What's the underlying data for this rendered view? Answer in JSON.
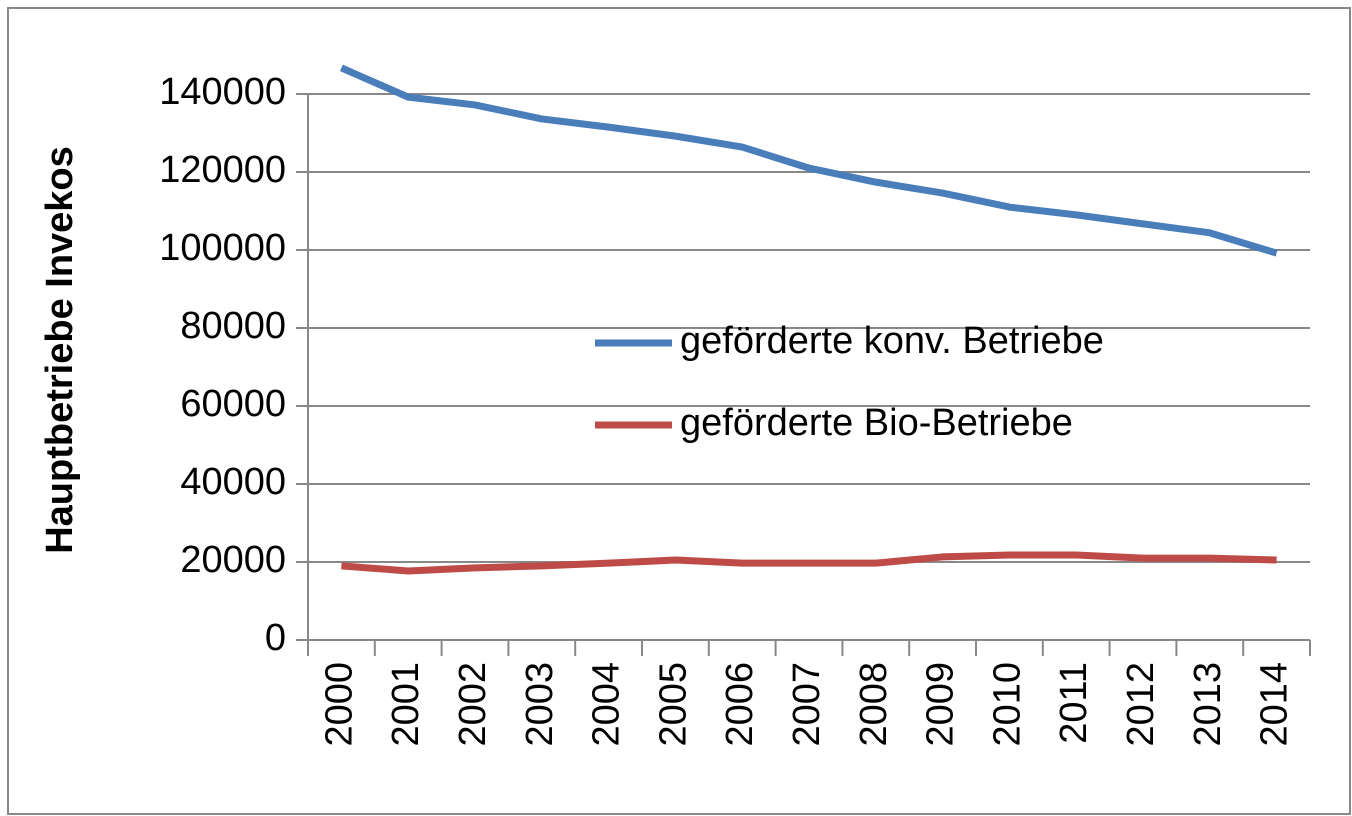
{
  "chart_data": {
    "type": "line",
    "y_label": "Hauptbetriebe Invekos",
    "categories": [
      "2000",
      "2001",
      "2002",
      "2003",
      "2004",
      "2005",
      "2006",
      "2007",
      "2008",
      "2009",
      "2010",
      "2011",
      "2012",
      "2013",
      "2014"
    ],
    "series": [
      {
        "name": "geförderte konv. Betriebe",
        "color": "#4a7ebb",
        "values": [
          146700,
          139200,
          137200,
          133600,
          131500,
          129200,
          126400,
          121000,
          117400,
          114600,
          111000,
          109000,
          106700,
          104400,
          99200
        ]
      },
      {
        "name": "geförderte Bio-Betriebe",
        "color": "#be4b48",
        "values": [
          19000,
          17700,
          18500,
          19000,
          19700,
          20500,
          19700,
          19700,
          19700,
          21300,
          21800,
          21800,
          21000,
          21000,
          20500
        ]
      }
    ],
    "ylim": [
      0,
      140000
    ],
    "yticks": [
      0,
      20000,
      40000,
      60000,
      80000,
      100000,
      120000,
      140000
    ],
    "grid": true,
    "legend": "center"
  }
}
